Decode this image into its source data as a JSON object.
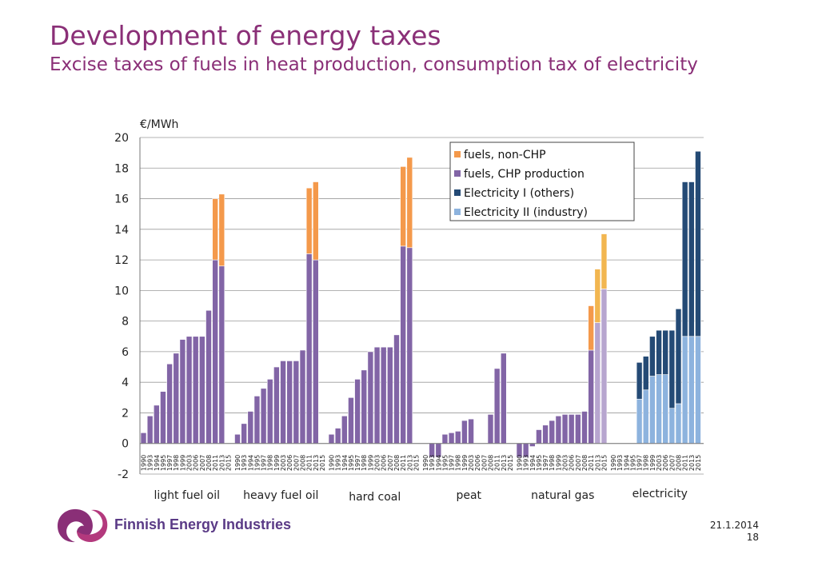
{
  "slide": {
    "title": "Development of energy taxes",
    "subtitle": "Excise taxes of fuels in heat production, consumption tax of electricity",
    "date": "21.1.2014",
    "page": "18",
    "logo_text": "Finnish Energy Industries"
  },
  "colors": {
    "title": "#8a2f77",
    "non_chp": "#f4994b",
    "chp": "#8265a6",
    "elec_others": "#244a75",
    "elec_industry": "#8db3de",
    "future_chp": "#b7a5cf",
    "future_non_chp": "#f2b650"
  },
  "chart_data": {
    "type": "bar",
    "stacked": true,
    "ylabel": "€/MWh",
    "ylim": [
      -2,
      20
    ],
    "yticks": [
      -2,
      0,
      2,
      4,
      6,
      8,
      10,
      12,
      14,
      16,
      18,
      20
    ],
    "grid": true,
    "legend_position": "top-right",
    "legend": [
      "fuels, non-CHP",
      "fuels, CHP production",
      "Electricity I (others)",
      "Electricity II (industry)"
    ],
    "years": [
      "1990",
      "1993",
      "1994",
      "1995",
      "1997",
      "1998",
      "1999",
      "2003",
      "2006",
      "2007",
      "2008",
      "2011",
      "2013",
      "2015"
    ],
    "groups": [
      {
        "name": "light fuel oil",
        "series": [
          {
            "name": "fuels, CHP production",
            "values": [
              0.7,
              1.8,
              2.5,
              3.4,
              5.2,
              5.9,
              6.8,
              7.0,
              7.0,
              7.0,
              8.7,
              12.0,
              11.6,
              null
            ]
          },
          {
            "name": "fuels, non-CHP",
            "values": [
              0,
              0,
              0,
              0,
              0,
              0,
              0,
              0,
              0,
              0,
              0,
              4.0,
              4.7,
              null
            ]
          }
        ]
      },
      {
        "name": "heavy fuel oil",
        "series": [
          {
            "name": "fuels, CHP production",
            "values": [
              0.6,
              1.3,
              2.1,
              3.1,
              3.6,
              4.2,
              5.0,
              5.4,
              5.4,
              5.4,
              6.1,
              12.4,
              12.0,
              null
            ]
          },
          {
            "name": "fuels, non-CHP",
            "values": [
              0,
              0,
              0,
              0,
              0,
              0,
              0,
              0,
              0,
              0,
              0,
              4.3,
              5.1,
              null
            ]
          }
        ]
      },
      {
        "name": "hard coal",
        "series": [
          {
            "name": "fuels, CHP production",
            "values": [
              0.6,
              1.0,
              1.8,
              3.0,
              4.2,
              4.8,
              6.0,
              6.3,
              6.3,
              6.3,
              7.1,
              12.9,
              12.8,
              null
            ]
          },
          {
            "name": "fuels, non-CHP",
            "values": [
              0,
              0,
              0,
              0,
              0,
              0,
              0,
              0,
              0,
              0,
              0,
              5.2,
              5.9,
              null
            ]
          }
        ]
      },
      {
        "name": "peat",
        "series": [
          {
            "name": "fuels, CHP production",
            "values": [
              null,
              -0.9,
              -0.9,
              0.6,
              0.7,
              0.8,
              1.5,
              1.6,
              null,
              null,
              1.9,
              4.9,
              5.9,
              null
            ]
          },
          {
            "name": "fuels, non-CHP",
            "values": [
              null,
              0,
              0,
              0,
              0,
              0,
              0,
              0,
              null,
              null,
              0,
              0,
              0,
              null
            ]
          }
        ]
      },
      {
        "name": "natural gas",
        "series": [
          {
            "name": "fuels, CHP production",
            "values": [
              -0.9,
              -0.9,
              -0.2,
              0.9,
              1.2,
              1.5,
              1.8,
              1.9,
              1.9,
              1.9,
              2.1,
              6.1,
              7.9,
              10.1
            ]
          },
          {
            "name": "fuels, non-CHP",
            "values": [
              0,
              0,
              0,
              0,
              0,
              0,
              0,
              0,
              0,
              0,
              0,
              2.9,
              3.5,
              3.6
            ]
          }
        ]
      },
      {
        "name": "electricity",
        "series": [
          {
            "name": "Electricity II (industry)",
            "values": [
              null,
              null,
              null,
              null,
              2.9,
              3.5,
              4.4,
              4.5,
              4.5,
              2.3,
              2.6,
              7.0,
              7.0,
              7.0
            ]
          },
          {
            "name": "Electricity I (others)",
            "values": [
              null,
              null,
              null,
              null,
              2.4,
              2.2,
              2.6,
              2.9,
              2.9,
              5.1,
              6.2,
              10.1,
              10.1,
              12.1
            ]
          }
        ]
      }
    ]
  }
}
